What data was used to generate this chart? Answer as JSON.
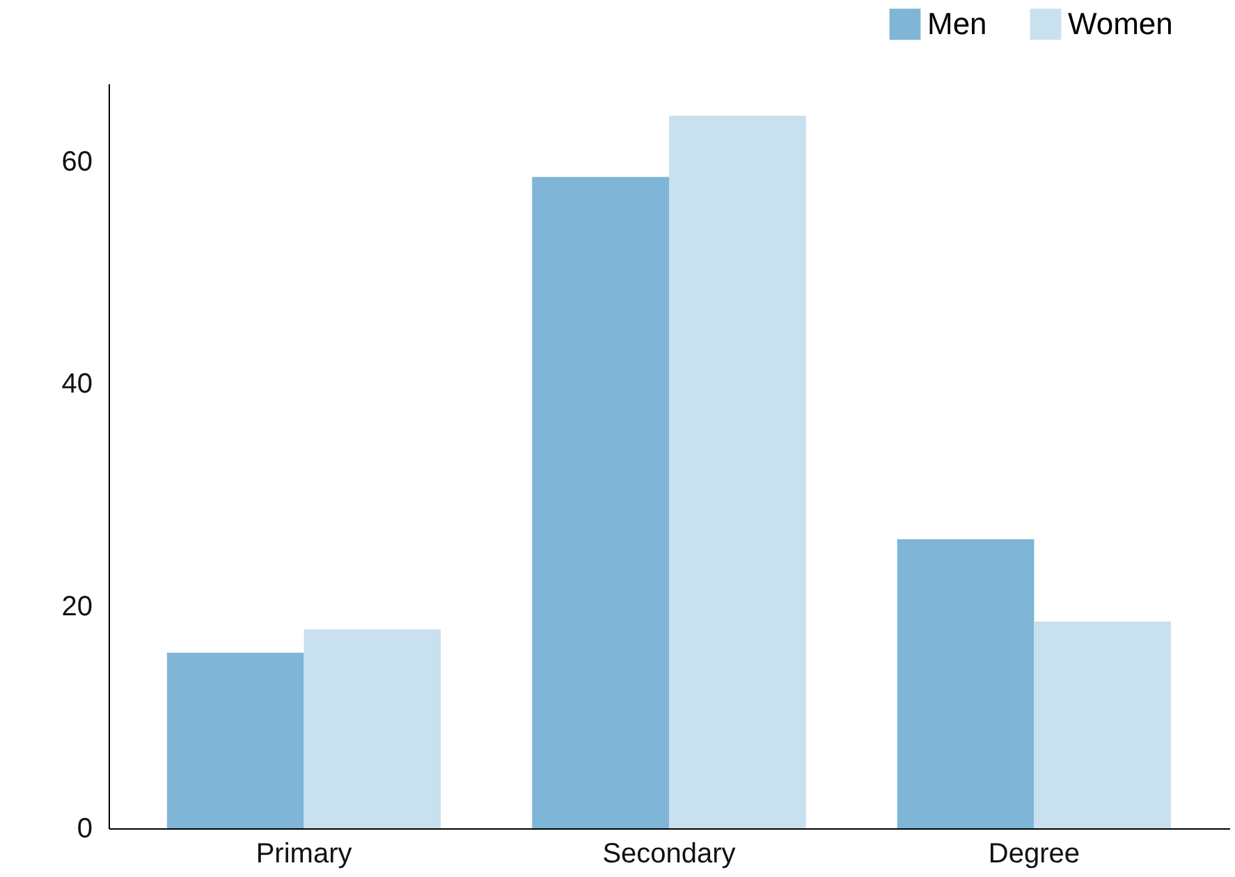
{
  "chart_data": {
    "type": "bar",
    "categories": [
      "Primary",
      "Secondary",
      "Degree"
    ],
    "series": [
      {
        "name": "Men",
        "color": "#7fb5d6",
        "values": [
          15.8,
          58.6,
          26.0
        ]
      },
      {
        "name": "Women",
        "color": "#c9e0ef",
        "values": [
          17.9,
          64.1,
          18.6
        ]
      }
    ],
    "ylim": [
      0,
      67
    ],
    "yticks": [
      0,
      20,
      40,
      60
    ],
    "grid": false,
    "legend": "top right"
  }
}
